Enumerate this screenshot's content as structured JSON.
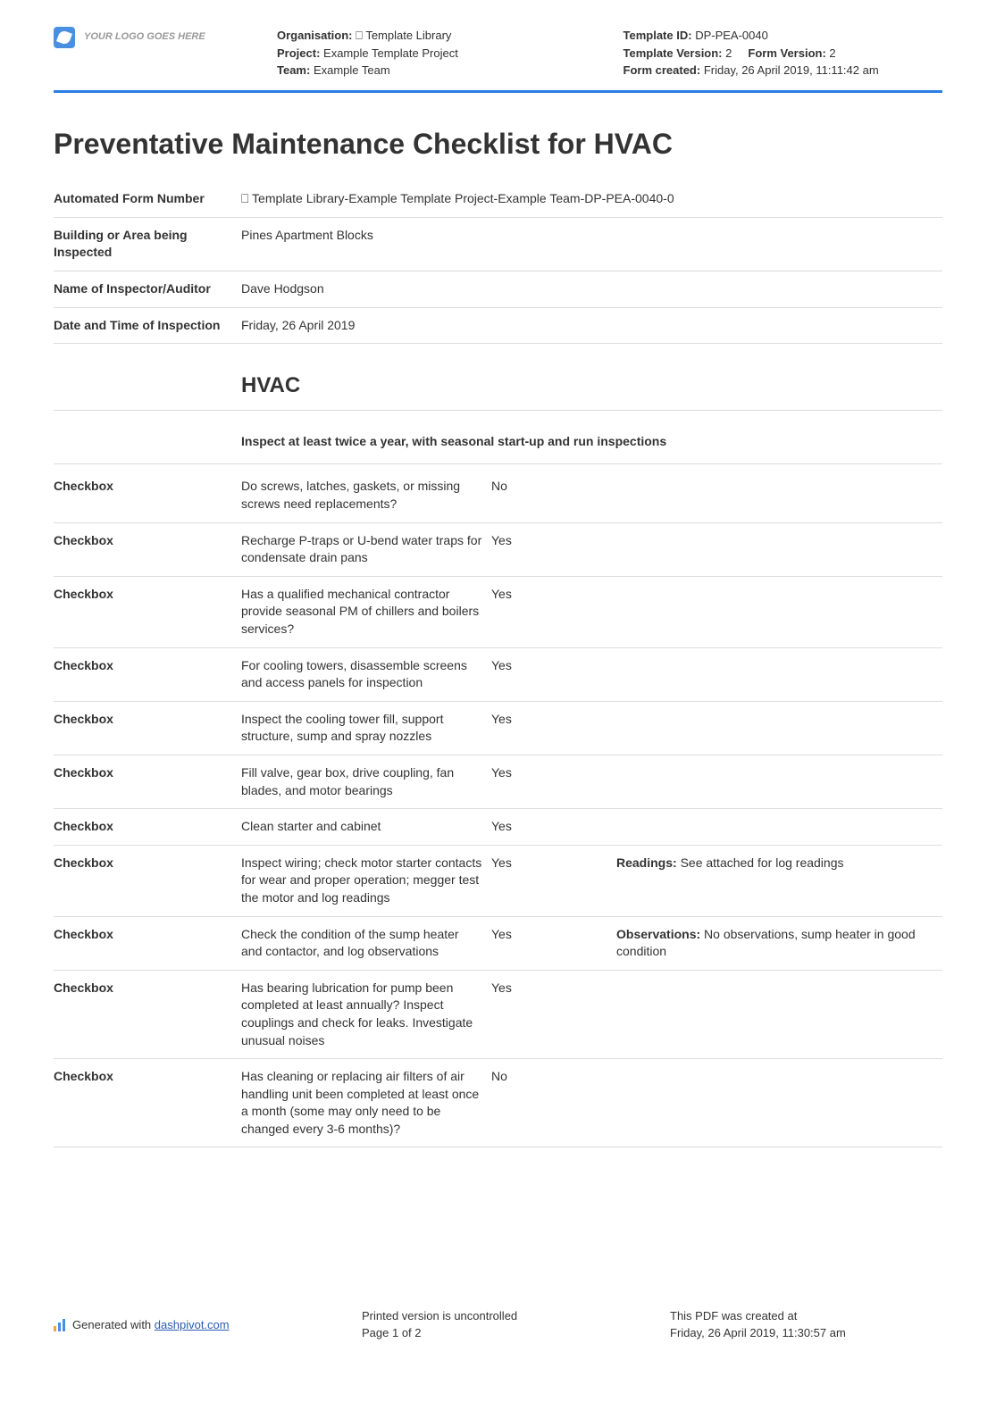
{
  "header": {
    "logo_placeholder": "YOUR LOGO GOES HERE",
    "left_meta": {
      "org_label": "Organisation:",
      "org_value": "⎕ Template Library",
      "proj_label": "Project:",
      "proj_value": "Example Template Project",
      "team_label": "Team:",
      "team_value": "Example Team"
    },
    "right_meta": {
      "tid_label": "Template ID:",
      "tid_value": "DP-PEA-0040",
      "tv_label": "Template Version:",
      "tv_value": "2",
      "fv_label": "Form Version:",
      "fv_value": "2",
      "fc_label": "Form created:",
      "fc_value": "Friday, 26 April 2019, 11:11:42 am"
    }
  },
  "title": "Preventative Maintenance Checklist for HVAC",
  "info": [
    {
      "label": "Automated Form Number",
      "value": "⎕ Template Library-Example Template Project-Example Team-DP-PEA-0040-0"
    },
    {
      "label": "Building or Area being Inspected",
      "value": "Pines Apartment Blocks"
    },
    {
      "label": "Name of Inspector/Auditor",
      "value": "Dave Hodgson"
    },
    {
      "label": "Date and Time of Inspection",
      "value": "Friday, 26 April 2019"
    }
  ],
  "section": {
    "heading": "HVAC",
    "subheading": "Inspect at least twice a year, with seasonal start-up and run inspections",
    "row_label": "Checkbox",
    "rows": [
      {
        "q": "Do screws, latches, gaskets, or missing screws need replacements?",
        "a": "No",
        "note_label": "",
        "note": ""
      },
      {
        "q": "Recharge P-traps or U-bend water traps for condensate drain pans",
        "a": "Yes",
        "note_label": "",
        "note": ""
      },
      {
        "q": "Has a qualified mechanical contractor provide seasonal PM of chillers and boilers services?",
        "a": "Yes",
        "note_label": "",
        "note": ""
      },
      {
        "q": "For cooling towers, disassemble screens and access panels for inspection",
        "a": "Yes",
        "note_label": "",
        "note": ""
      },
      {
        "q": "Inspect the cooling tower fill, support structure, sump and spray nozzles",
        "a": "Yes",
        "note_label": "",
        "note": ""
      },
      {
        "q": "Fill valve, gear box, drive coupling, fan blades, and motor bearings",
        "a": "Yes",
        "note_label": "",
        "note": ""
      },
      {
        "q": "Clean starter and cabinet",
        "a": "Yes",
        "note_label": "",
        "note": ""
      },
      {
        "q": "Inspect wiring; check motor starter contacts for wear and proper operation; megger test the motor and log readings",
        "a": "Yes",
        "note_label": "Readings:",
        "note": " See attached for log readings"
      },
      {
        "q": "Check the condition of the sump heater and contactor, and log observations",
        "a": "Yes",
        "note_label": "Observations:",
        "note": " No observations, sump heater in good condition"
      },
      {
        "q": "Has bearing lubrication for pump been completed at least annually? Inspect couplings and check for leaks. Investigate unusual noises",
        "a": "Yes",
        "note_label": "",
        "note": ""
      },
      {
        "q": "Has cleaning or replacing air filters of air handling unit been completed at least once a month (some may only need to be changed every 3-6 months)?",
        "a": "No",
        "note_label": "",
        "note": ""
      }
    ]
  },
  "footer": {
    "gen_prefix": "Generated with ",
    "gen_link": "dashpivot.com",
    "uncontrolled": "Printed version is uncontrolled",
    "page": "Page 1 of 2",
    "created_label": "This PDF was created at",
    "created_value": "Friday, 26 April 2019, 11:30:57 am"
  }
}
